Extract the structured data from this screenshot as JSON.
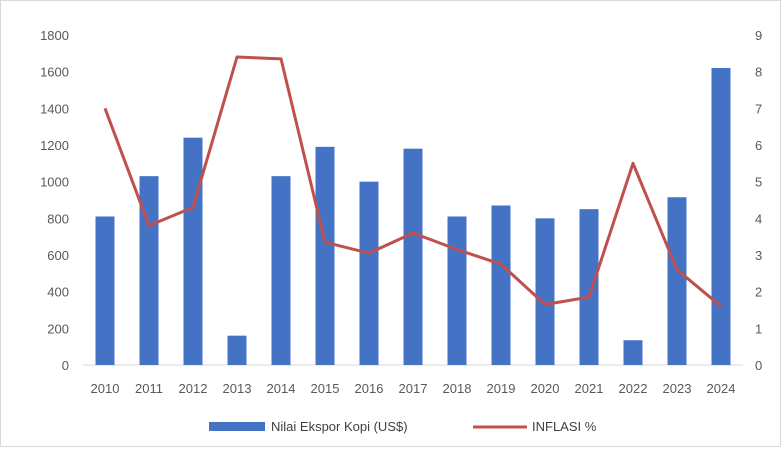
{
  "chart_data": {
    "type": "bar",
    "categories": [
      "2010",
      "2011",
      "2012",
      "2013",
      "2014",
      "2015",
      "2016",
      "2017",
      "2018",
      "2019",
      "2020",
      "2021",
      "2022",
      "2023",
      "2024"
    ],
    "series": [
      {
        "name": "Nilai Ekspor Kopi  (US$)",
        "type": "bar",
        "axis": "left",
        "color": "#4472c4",
        "values": [
          810,
          1030,
          1240,
          160,
          1030,
          1190,
          1000,
          1180,
          810,
          870,
          800,
          850,
          135,
          915,
          1620
        ]
      },
      {
        "name": "INFLASI %",
        "type": "line",
        "axis": "right",
        "color": "#c0504d",
        "values": [
          7.0,
          3.8,
          4.3,
          8.4,
          8.35,
          3.35,
          3.05,
          3.6,
          3.15,
          2.75,
          1.65,
          1.85,
          5.5,
          2.6,
          1.6
        ]
      }
    ],
    "y_left": {
      "range": [
        0,
        1800
      ],
      "ticks": [
        "0",
        "200",
        "400",
        "600",
        "800",
        "1000",
        "1200",
        "1400",
        "1600",
        "1800"
      ]
    },
    "y_right": {
      "range": [
        0,
        9
      ],
      "ticks": [
        "0",
        "1",
        "2",
        "3",
        "4",
        "5",
        "6",
        "7",
        "8",
        "9"
      ]
    },
    "grid": false,
    "legend_position": "bottom"
  }
}
